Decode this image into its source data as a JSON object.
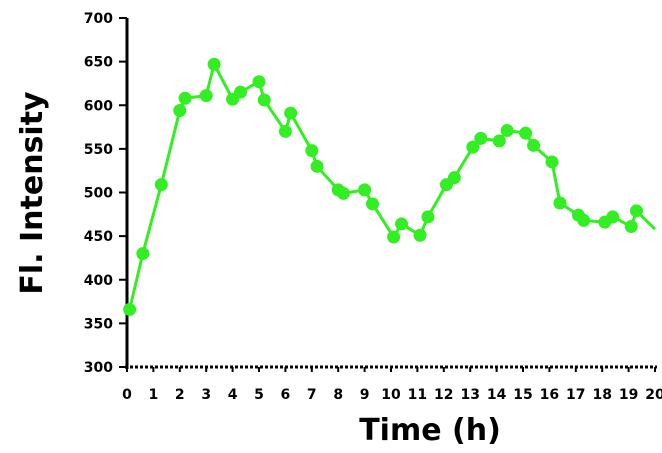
{
  "chart_data": {
    "type": "line",
    "xlabel": "Time (h)",
    "ylabel": "Fl. Intensity",
    "xlim": [
      0,
      20
    ],
    "ylim": [
      300,
      700
    ],
    "x_ticks": [
      "0",
      "1",
      "2",
      "3",
      "4",
      "5",
      "6",
      "7",
      "8",
      "9",
      "10",
      "11",
      "12",
      "13",
      "14",
      "15",
      "16",
      "17",
      "18",
      "19",
      "20"
    ],
    "y_ticks": [
      "300",
      "350",
      "400",
      "450",
      "500",
      "550",
      "600",
      "650",
      "700"
    ],
    "grid": false,
    "series": [
      {
        "color": "#33ee22",
        "x": [
          0.1,
          0.6,
          1.3,
          2.0,
          2.2,
          3.0,
          3.3,
          4.0,
          4.3,
          5.0,
          5.2,
          6.0,
          6.2,
          7.0,
          7.2,
          8.0,
          8.2,
          9.0,
          9.3,
          10.1,
          10.4,
          11.1,
          11.4,
          12.1,
          12.4,
          13.1,
          13.4,
          14.1,
          14.4,
          15.1,
          15.4,
          16.1,
          16.4,
          17.1,
          17.3,
          18.1,
          18.4,
          19.1,
          19.3,
          20.0
        ],
        "y": [
          366,
          430,
          509,
          594,
          608,
          611,
          647,
          607,
          615,
          627,
          606,
          570,
          591,
          548,
          530,
          503,
          499,
          503,
          487,
          449,
          464,
          451,
          472,
          509,
          517,
          552,
          562,
          559,
          571,
          568,
          554,
          535,
          488,
          474,
          468,
          466,
          472,
          461,
          479,
          458
        ],
        "markers": [
          true,
          true,
          true,
          true,
          true,
          true,
          true,
          true,
          true,
          true,
          true,
          true,
          true,
          true,
          true,
          true,
          true,
          true,
          true,
          true,
          true,
          true,
          true,
          true,
          true,
          true,
          true,
          true,
          true,
          true,
          true,
          true,
          true,
          true,
          true,
          true,
          true,
          true,
          true,
          false
        ]
      }
    ]
  }
}
